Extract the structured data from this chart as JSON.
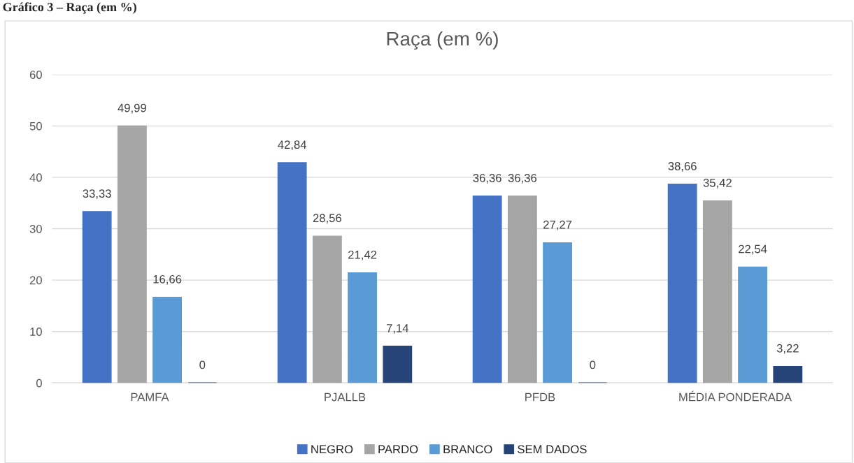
{
  "chart_data": {
    "type": "bar",
    "title": "Raça (em %)",
    "annotations": [
      "Gráfico 3 – Raça (em %)"
    ],
    "categories": [
      "PAMFA",
      "PJALLB",
      "PFDB",
      "MÉDIA PONDERADA"
    ],
    "series": [
      {
        "name": "NEGRO",
        "color": "#4472c4",
        "values": [
          33.33,
          42.84,
          36.36,
          38.66
        ],
        "value_labels": [
          "33,33",
          "42,84",
          "36,36",
          "38,66"
        ]
      },
      {
        "name": "PARDO",
        "color": "#a5a5a5",
        "values": [
          49.99,
          28.56,
          36.36,
          35.42
        ],
        "value_labels": [
          "49,99",
          "28,56",
          "36,36",
          "35,42"
        ]
      },
      {
        "name": "BRANCO",
        "color": "#5b9bd5",
        "values": [
          16.66,
          21.42,
          27.27,
          22.54
        ],
        "value_labels": [
          "16,66",
          "21,42",
          "27,27",
          "22,54"
        ]
      },
      {
        "name": "SEM DADOS",
        "color": "#264478",
        "values": [
          0,
          7.14,
          0,
          3.22
        ],
        "value_labels": [
          "0",
          "7,14",
          "0",
          "3,22"
        ]
      }
    ],
    "ylim": [
      0,
      60
    ],
    "yticks": [
      0,
      10,
      20,
      30,
      40,
      50,
      60
    ],
    "grid": "y",
    "legend": "bottom"
  }
}
